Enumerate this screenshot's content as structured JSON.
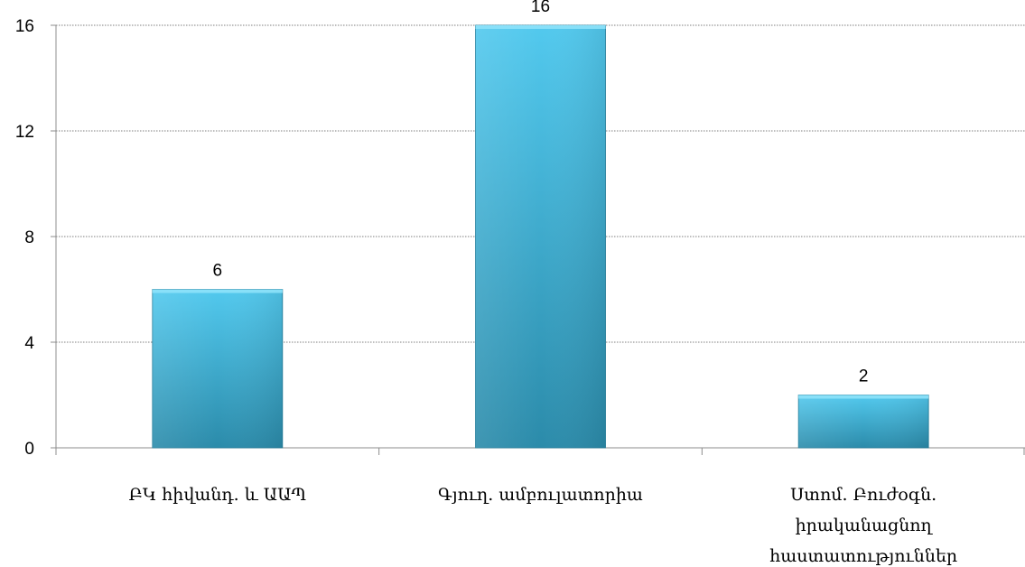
{
  "chart_data": {
    "type": "bar",
    "categories": [
      [
        "ԲԿ հիվանդ. և ԱԱՊ"
      ],
      [
        "Գյուղ. ամբուլատորիա"
      ],
      [
        "Ստոմ. Բուժօգն.",
        "իրականացնող",
        "հաստատություններ"
      ]
    ],
    "values": [
      6,
      16,
      2
    ],
    "data_labels": [
      "6",
      "16",
      "2"
    ],
    "ylim": [
      0,
      16
    ],
    "yticks": [
      0,
      4,
      8,
      12,
      16
    ],
    "ytick_labels": [
      "0",
      "4",
      "8",
      "12",
      "16"
    ],
    "grid": true,
    "legend": "none",
    "colors": {
      "bar_top": "#4FC7EC",
      "bar_bottom": "#2D8FAE",
      "bar_edge": "#1F7A98",
      "grid": "#7f7f7f",
      "axis": "#8c8c8c"
    }
  }
}
